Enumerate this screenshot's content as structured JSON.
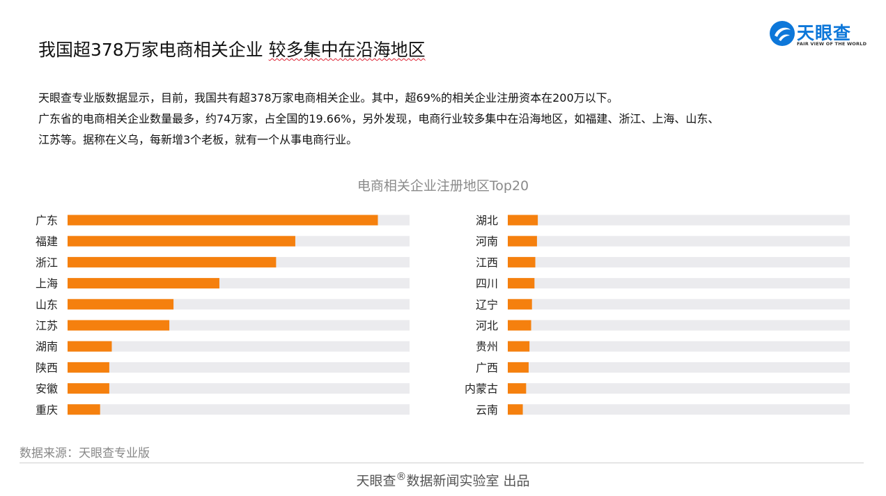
{
  "header": {
    "title_part1": "我国超378万家电商相关企业",
    "title_part2": "较多集中在沿海地区",
    "logo_text": "天眼查",
    "logo_tagline": "FAIR VIEW OF THE WORLD"
  },
  "intro": {
    "line1": "天眼查专业版数据显示，目前，我国共有超378万家电商相关企业。其中，超69%的相关企业注册资本在200万以下。",
    "line2": "广东省的电商相关企业数量最多，约74万家，占全国的19.66%，另外发现，电商行业较多集中在沿海地区，如福建、浙江、上海、山东、",
    "line3": "江苏等。据称在义乌，每新增3个老板，就有一个从事电商行业。"
  },
  "chart_data": {
    "type": "bar",
    "orientation": "horizontal",
    "title": "电商相关企业注册地区Top20",
    "value_axis_shown": false,
    "colors": {
      "bar": "#f5800e",
      "track": "#ebebee"
    },
    "panels": [
      {
        "categories": [
          "广东",
          "福建",
          "浙江",
          "上海",
          "山东",
          "江苏",
          "湖南",
          "陕西",
          "安徽",
          "重庆"
        ],
        "values": [
          74.4,
          54.6,
          50.0,
          36.4,
          25.4,
          24.4,
          10.6,
          10.0,
          10.0,
          7.8
        ]
      },
      {
        "categories": [
          "湖北",
          "河南",
          "江西",
          "四川",
          "辽宁",
          "河北",
          "贵州",
          "广西",
          "内蒙古",
          "云南"
        ],
        "values": [
          7.2,
          7.0,
          6.6,
          6.4,
          5.8,
          5.6,
          5.2,
          5.0,
          4.4,
          3.6
        ]
      }
    ],
    "xlim": [
      0,
      82
    ]
  },
  "footer": {
    "source": "数据来源：天眼查专业版",
    "credit_brand": "天眼查",
    "credit_mark": "®",
    "credit_rest": "数据新闻实验室 出品"
  }
}
